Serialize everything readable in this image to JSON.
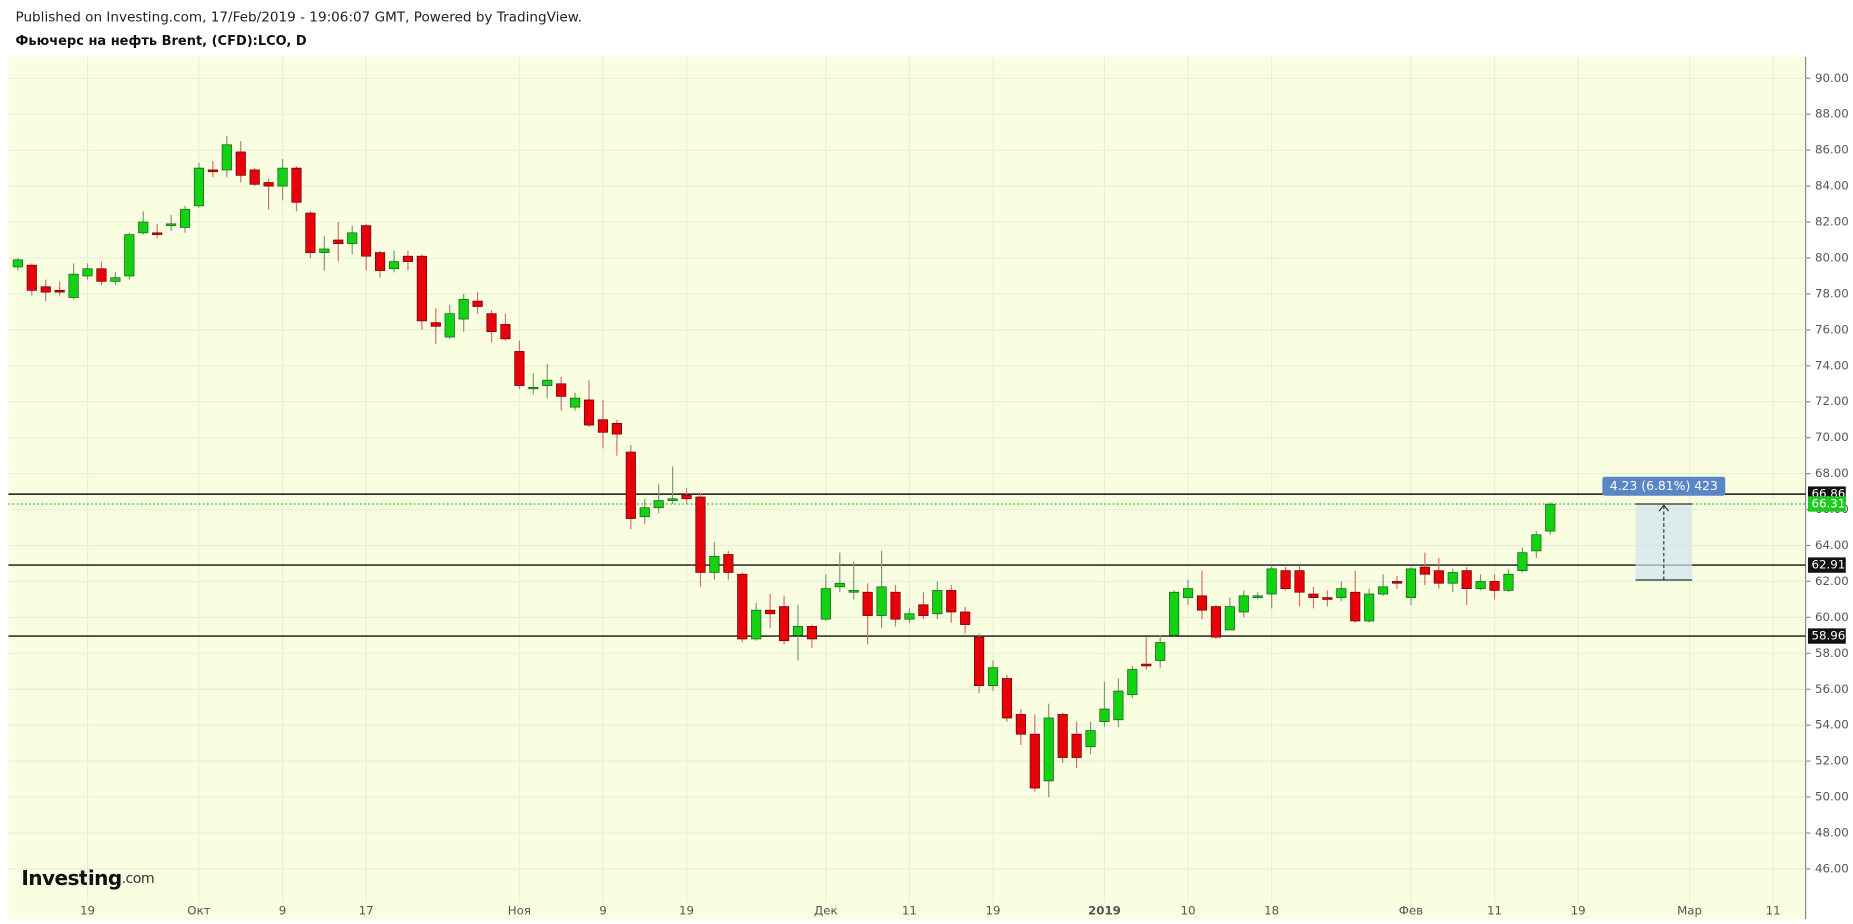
{
  "header": {
    "published": "Published on Investing.com, 17/Feb/2019 - 19:06:07 GMT, Powered by TradingView.",
    "symbol": "Фьючерс на нефть Brent, (CFD):LCO, D"
  },
  "logo": {
    "name": "Investing",
    "suffix": ".com"
  },
  "chart_data": {
    "type": "candlestick",
    "categories": [
      null,
      null,
      null,
      null,
      null,
      "19",
      null,
      null,
      null,
      null,
      null,
      null,
      null,
      "Окт",
      null,
      null,
      null,
      null,
      null,
      "9",
      null,
      null,
      null,
      null,
      null,
      "17",
      null,
      null,
      null,
      null,
      null,
      null,
      null,
      null,
      null,
      null,
      "Ноя",
      null,
      null,
      null,
      null,
      null,
      "9",
      null,
      null,
      null,
      null,
      null,
      "19",
      null,
      null,
      null,
      null,
      null,
      null,
      null,
      null,
      null,
      "Дек",
      null,
      null,
      null,
      null,
      null,
      "11",
      null,
      null,
      null,
      null,
      null,
      "19",
      null,
      null,
      null,
      null,
      null,
      null,
      null,
      "2019",
      null,
      null,
      null,
      null,
      null,
      "10",
      null,
      null,
      null,
      null,
      null,
      "18",
      null,
      null,
      null,
      null,
      null,
      null,
      null,
      null,
      null,
      "Фев",
      null,
      null,
      null,
      null,
      null,
      "11",
      null,
      null,
      null,
      null,
      null,
      "19",
      null,
      null,
      null,
      null,
      null,
      null,
      null,
      "Мар",
      null,
      null,
      null,
      null,
      null,
      "11",
      null,
      null
    ],
    "open": [
      79.5,
      79.6,
      78.4,
      78.2,
      77.8,
      79.0,
      79.4,
      78.7,
      79.0,
      81.4,
      81.4,
      81.8,
      81.7,
      82.9,
      84.9,
      84.9,
      85.9,
      84.9,
      84.2,
      84.0,
      85.0,
      82.5,
      80.3,
      81.0,
      80.8,
      81.8,
      80.3,
      79.4,
      80.1,
      80.1,
      76.4,
      75.6,
      76.6,
      77.6,
      76.9,
      76.3,
      74.8,
      72.8,
      72.9,
      73.0,
      71.7,
      72.1,
      71.0,
      70.8,
      69.2,
      65.6,
      66.1,
      66.5,
      66.8,
      66.7,
      62.5,
      63.5,
      62.4,
      58.8,
      60.4,
      60.6,
      59.0,
      59.5,
      59.9,
      61.7,
      61.4,
      61.4,
      60.1,
      61.4,
      59.9,
      60.7,
      60.2,
      61.5,
      60.3,
      58.9,
      56.2,
      56.6,
      54.6,
      53.5,
      50.9,
      54.6,
      53.5,
      52.8,
      54.2,
      54.3,
      55.7,
      57.4,
      57.6,
      59.0,
      61.1,
      61.2,
      60.6,
      59.3,
      60.3,
      61.1,
      61.3,
      62.6,
      62.6,
      61.3,
      61.1,
      61.1,
      61.4,
      59.8,
      61.3,
      62.0,
      61.1,
      62.8,
      62.6,
      61.9,
      62.6,
      61.6,
      62.0,
      61.5,
      62.6,
      63.7,
      64.8,
      null,
      null,
      null,
      null,
      null,
      null,
      null,
      null,
      null,
      null,
      null,
      null,
      null,
      null,
      null,
      null,
      null,
      null
    ],
    "high": [
      80.0,
      79.7,
      78.8,
      78.7,
      79.7,
      79.7,
      79.8,
      79.2,
      81.4,
      82.6,
      81.9,
      82.4,
      82.9,
      85.3,
      85.4,
      86.8,
      86.5,
      85.0,
      84.4,
      85.5,
      85.1,
      82.6,
      81.2,
      82.0,
      81.8,
      81.9,
      80.4,
      80.4,
      80.4,
      80.2,
      77.2,
      77.4,
      78.0,
      78.1,
      77.1,
      76.9,
      75.4,
      73.6,
      74.1,
      73.4,
      72.5,
      73.2,
      72.1,
      71.0,
      69.6,
      66.6,
      67.4,
      68.4,
      67.2,
      66.9,
      64.2,
      63.7,
      62.5,
      60.8,
      61.3,
      61.2,
      60.7,
      59.6,
      62.4,
      63.6,
      63.1,
      61.9,
      63.7,
      61.8,
      60.5,
      61.4,
      62.0,
      61.8,
      60.6,
      59.1,
      57.6,
      56.8,
      54.9,
      54.6,
      55.2,
      54.7,
      54.2,
      54.2,
      56.4,
      56.6,
      57.3,
      58.9,
      59.0,
      61.5,
      62.1,
      62.6,
      60.7,
      61.1,
      61.5,
      61.4,
      62.9,
      62.8,
      62.9,
      61.7,
      61.5,
      62.0,
      62.6,
      61.6,
      62.4,
      62.3,
      62.8,
      63.6,
      63.3,
      62.7,
      62.8,
      62.4,
      62.4,
      62.7,
      63.9,
      64.8,
      66.4,
      null,
      null,
      null,
      null,
      null,
      null,
      null,
      null,
      null,
      null,
      null,
      null,
      null,
      null,
      null,
      null,
      null,
      null
    ],
    "low": [
      79.3,
      77.9,
      77.6,
      77.9,
      77.7,
      78.8,
      78.5,
      78.5,
      78.8,
      81.3,
      81.1,
      81.5,
      81.4,
      82.8,
      84.5,
      84.5,
      84.2,
      84.0,
      82.7,
      83.2,
      82.6,
      80.0,
      79.3,
      79.8,
      80.2,
      79.3,
      78.9,
      79.2,
      79.3,
      76.0,
      75.2,
      75.5,
      75.9,
      76.9,
      75.3,
      75.4,
      72.7,
      72.4,
      72.2,
      71.5,
      71.5,
      70.6,
      69.4,
      69.0,
      64.9,
      65.2,
      65.8,
      66.3,
      66.3,
      61.7,
      62.1,
      62.1,
      58.6,
      58.7,
      59.4,
      58.5,
      57.6,
      58.3,
      59.8,
      61.4,
      61.0,
      58.5,
      59.4,
      59.5,
      59.7,
      59.9,
      59.9,
      59.7,
      59.1,
      55.8,
      55.9,
      54.2,
      52.9,
      50.3,
      50.0,
      51.9,
      51.6,
      52.4,
      53.9,
      53.9,
      55.5,
      57.1,
      57.2,
      58.9,
      60.7,
      59.9,
      58.8,
      59.3,
      60.0,
      61.0,
      60.5,
      61.5,
      60.6,
      60.5,
      60.6,
      60.9,
      59.7,
      59.7,
      61.2,
      61.6,
      60.7,
      61.8,
      61.6,
      61.4,
      60.7,
      61.5,
      61.0,
      61.4,
      62.5,
      63.3,
      64.6,
      null,
      null,
      null,
      null,
      null,
      null,
      null,
      null,
      null,
      null,
      null,
      null,
      null,
      null,
      null,
      null,
      null,
      null
    ],
    "close": [
      79.9,
      78.2,
      78.1,
      78.1,
      79.1,
      79.4,
      78.7,
      78.9,
      81.3,
      82.0,
      81.3,
      81.9,
      82.7,
      85.0,
      84.8,
      86.3,
      84.6,
      84.1,
      84.0,
      85.0,
      83.1,
      80.3,
      80.5,
      80.8,
      81.4,
      80.1,
      79.3,
      79.8,
      79.8,
      76.5,
      76.2,
      76.9,
      77.7,
      77.3,
      75.9,
      75.5,
      72.9,
      72.8,
      73.2,
      72.3,
      72.2,
      70.7,
      70.3,
      70.2,
      65.5,
      66.1,
      66.5,
      66.6,
      66.6,
      62.5,
      63.4,
      62.5,
      58.8,
      60.4,
      60.2,
      58.7,
      59.5,
      58.8,
      61.6,
      61.9,
      61.5,
      60.1,
      61.7,
      59.9,
      60.2,
      60.1,
      61.5,
      60.3,
      59.6,
      56.2,
      57.2,
      54.4,
      53.5,
      50.5,
      54.4,
      52.2,
      52.2,
      53.7,
      54.9,
      55.9,
      57.1,
      57.3,
      58.6,
      61.4,
      61.6,
      60.4,
      58.9,
      60.6,
      61.2,
      61.2,
      62.7,
      61.6,
      61.4,
      61.1,
      61.0,
      61.6,
      59.8,
      61.3,
      61.7,
      61.9,
      62.7,
      62.4,
      61.9,
      62.5,
      61.6,
      62.0,
      61.5,
      62.4,
      63.6,
      64.6,
      66.3,
      null,
      null,
      null,
      null,
      null,
      null,
      null,
      null,
      null,
      null,
      null,
      null,
      null,
      null,
      null,
      null,
      null,
      null
    ],
    "up_color": "#12d212",
    "down_color": "#e8000b",
    "ylim": [
      43.2,
      91.2
    ],
    "yticks": [
      {
        "value": 46,
        "label": "46.00"
      },
      {
        "value": 48,
        "label": "48.00"
      },
      {
        "value": 50,
        "label": "50.00"
      },
      {
        "value": 52,
        "label": "52.00"
      },
      {
        "value": 54,
        "label": "54.00"
      },
      {
        "value": 56,
        "label": "56.00"
      },
      {
        "value": 58,
        "label": "58.00"
      },
      {
        "value": 60,
        "label": "60.00"
      },
      {
        "value": 62,
        "label": "62.00"
      },
      {
        "value": 64,
        "label": "64.00"
      },
      {
        "value": 66,
        "label": "66.00"
      },
      {
        "value": 68,
        "label": "68.00"
      },
      {
        "value": 70,
        "label": "70.00"
      },
      {
        "value": 72,
        "label": "72.00"
      },
      {
        "value": 74,
        "label": "74.00"
      },
      {
        "value": 76,
        "label": "76.00"
      },
      {
        "value": 78,
        "label": "78.00"
      },
      {
        "value": 80,
        "label": "80.00"
      },
      {
        "value": 82,
        "label": "82.00"
      },
      {
        "value": 84,
        "label": "84.00"
      },
      {
        "value": 86,
        "label": "86.00"
      },
      {
        "value": 88,
        "label": "88.00"
      },
      {
        "value": 90,
        "label": "90.00"
      }
    ],
    "grid": true,
    "levels": [
      66.86,
      62.91,
      58.96
    ],
    "last_price": 66.31,
    "measure": {
      "label": "4.23 (6.81%) 423",
      "from": 62.08,
      "to": 66.31
    }
  }
}
